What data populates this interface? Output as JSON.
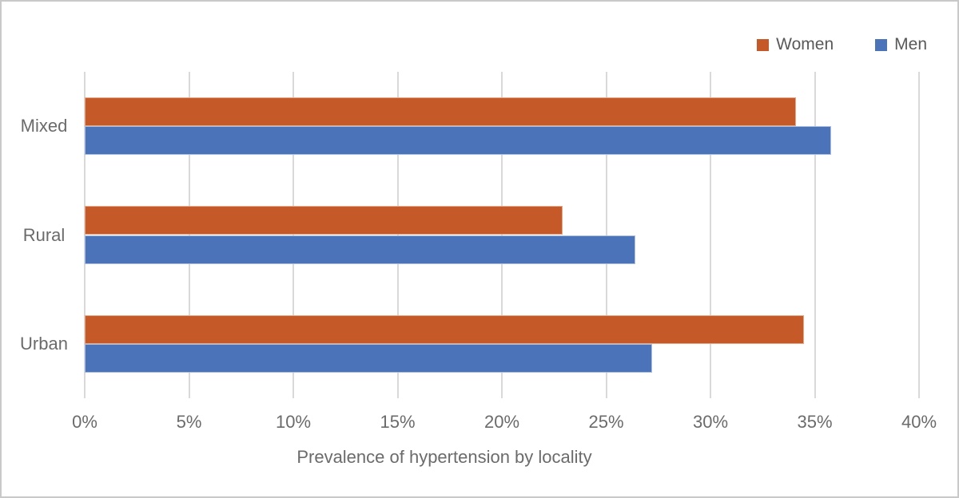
{
  "chart_data": {
    "type": "bar",
    "orientation": "horizontal",
    "title": "",
    "xlabel": "Prevalence of hypertension by locality",
    "ylabel": "",
    "categories": [
      "Mixed",
      "Rural",
      "Urban"
    ],
    "series": [
      {
        "name": "Women",
        "color": "#C55A28",
        "border_color": "#E2A887",
        "values": [
          34.1,
          22.9,
          34.5
        ]
      },
      {
        "name": "Men",
        "color": "#4A73B9",
        "border_color": "#AABEE0",
        "values": [
          35.8,
          26.4,
          27.2
        ]
      }
    ],
    "xlim": [
      0,
      40
    ],
    "x_tick_step": 5,
    "x_tick_labels": [
      "0%",
      "5%",
      "10%",
      "15%",
      "20%",
      "25%",
      "30%",
      "35%",
      "40%"
    ],
    "grid": "vertical",
    "gridline_color": "#D9D9D9",
    "legend_position": "top-right",
    "legend_entries": [
      "Women",
      "Men"
    ]
  },
  "frame": {
    "border_color": "#C9C9C9",
    "background": "#FFFFFF",
    "text_color": "#6B6B6B",
    "legend_text_color": "#595959"
  }
}
